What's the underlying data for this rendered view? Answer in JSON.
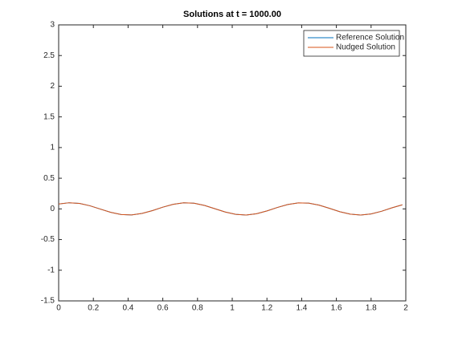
{
  "chart_data": {
    "type": "line",
    "title": "Solutions at t = 1000.00",
    "x": [
      0,
      0.06,
      0.12,
      0.18,
      0.24,
      0.3,
      0.36,
      0.42,
      0.48,
      0.54,
      0.6,
      0.66,
      0.72,
      0.78,
      0.84,
      0.9,
      0.96,
      1.02,
      1.08,
      1.14,
      1.2,
      1.26,
      1.32,
      1.38,
      1.44,
      1.5,
      1.56,
      1.62,
      1.68,
      1.74,
      1.8,
      1.86,
      1.92,
      1.98
    ],
    "series": [
      {
        "name": "Reference Solution",
        "color": "#0072bd",
        "values": [
          0.079,
          0.1,
          0.089,
          0.051,
          -0.003,
          -0.056,
          -0.092,
          -0.099,
          -0.074,
          -0.028,
          0.028,
          0.075,
          0.099,
          0.092,
          0.057,
          0.003,
          -0.051,
          -0.089,
          -0.1,
          -0.079,
          -0.033,
          0.023,
          0.071,
          0.098,
          0.094,
          0.061,
          0.009,
          -0.046,
          -0.086,
          -0.1,
          -0.082,
          -0.039,
          0.017,
          0.067
        ]
      },
      {
        "name": "Nudged Solution",
        "color": "#d95319",
        "values": [
          0.079,
          0.1,
          0.089,
          0.051,
          -0.003,
          -0.056,
          -0.092,
          -0.099,
          -0.074,
          -0.028,
          0.028,
          0.075,
          0.099,
          0.092,
          0.057,
          0.003,
          -0.051,
          -0.089,
          -0.1,
          -0.079,
          -0.033,
          0.023,
          0.071,
          0.098,
          0.094,
          0.061,
          0.009,
          -0.046,
          -0.086,
          -0.1,
          -0.082,
          -0.039,
          0.017,
          0.067
        ]
      }
    ],
    "xlim": [
      0,
      2
    ],
    "xticks": [
      0,
      0.2,
      0.4,
      0.6,
      0.8,
      1,
      1.2,
      1.4,
      1.6,
      1.8,
      2
    ],
    "ylim": [
      -1.5,
      3
    ],
    "yticks": [
      -1.5,
      -1,
      -0.5,
      0,
      0.5,
      1,
      1.5,
      2,
      2.5,
      3
    ],
    "grid": false,
    "legend": "upper right"
  }
}
